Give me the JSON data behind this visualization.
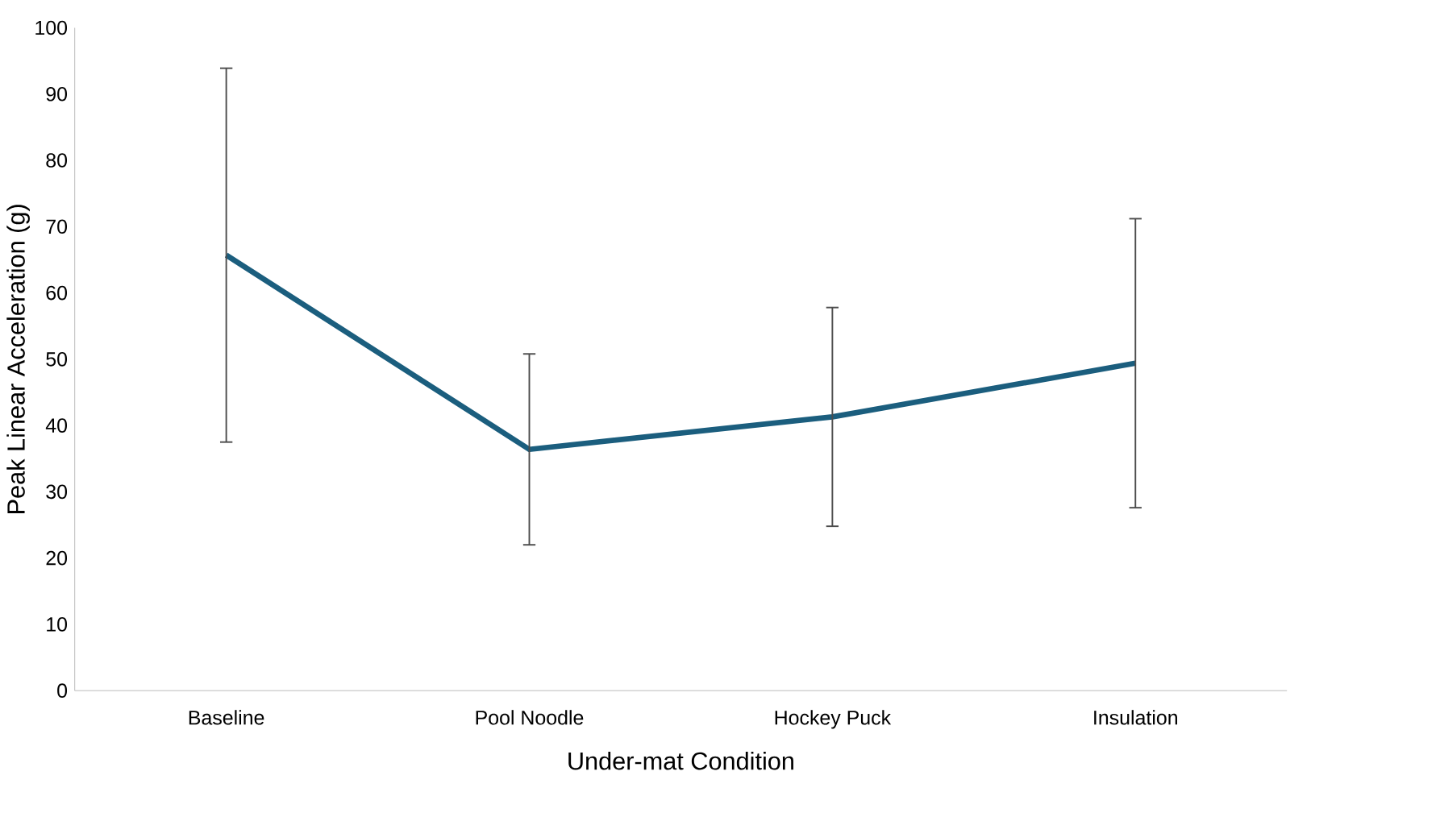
{
  "chart_data": {
    "type": "line",
    "xlabel": "Under-mat Condition",
    "ylabel": "Peak Linear Acceleration (g)",
    "categories": [
      "Baseline",
      "Pool Noodle",
      "Hockey Puck",
      "Insulation"
    ],
    "values": [
      65.7,
      36.4,
      41.3,
      49.4
    ],
    "errors": [
      28.2,
      14.4,
      16.5,
      21.8
    ],
    "color": "#1b5e7e",
    "ylim": [
      0,
      100
    ],
    "yticks": [
      0,
      10,
      20,
      30,
      40,
      50,
      60,
      70,
      80,
      90,
      100
    ]
  }
}
